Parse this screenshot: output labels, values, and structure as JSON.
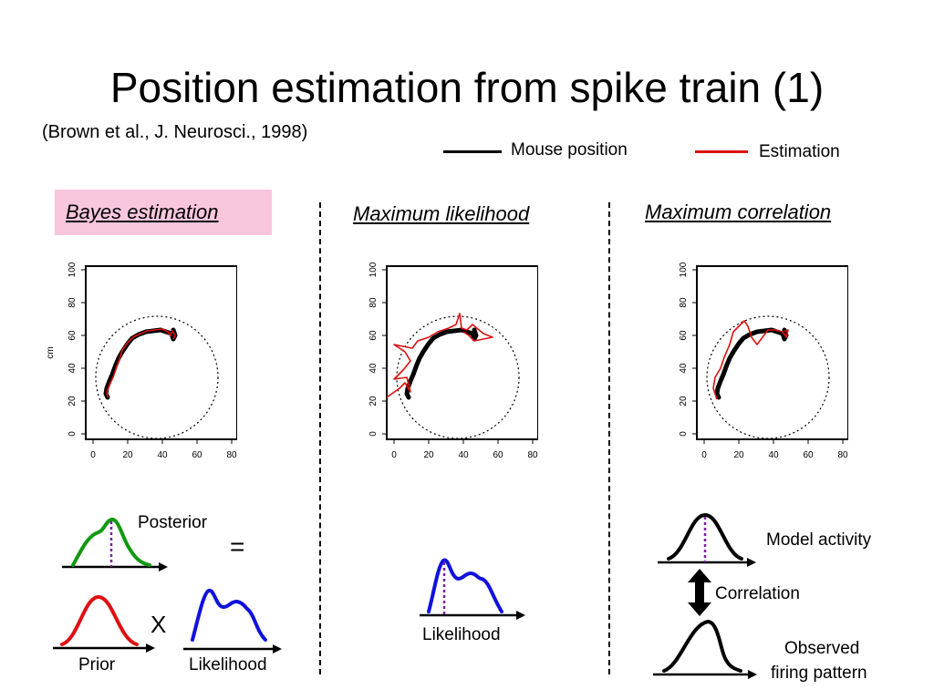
{
  "title": "Position estimation from spike train (1)",
  "citation": "(Brown et al., J. Neurosci., 1998)",
  "legend": {
    "items": [
      {
        "label": "Mouse position",
        "color": "#000000"
      },
      {
        "label": "Estimation",
        "color": "#dd1111"
      }
    ]
  },
  "methods": [
    {
      "label": "Bayes estimation",
      "highlight": "#f9c6de"
    },
    {
      "label": "Maximum likelihood"
    },
    {
      "label": "Maximum correlation"
    }
  ],
  "plot_axes": {
    "x_ticks": [
      "0",
      "20",
      "40",
      "60",
      "80"
    ],
    "y_ticks": [
      "0",
      "20",
      "40",
      "60",
      "80",
      "100"
    ],
    "y_label": "cm"
  },
  "diagram_labels": {
    "posterior": "Posterior",
    "equals": "=",
    "times": "X",
    "prior": "Prior",
    "likelihood_bayes": "Likelihood",
    "likelihood_ml": "Likelihood",
    "model_activity": "Model activity",
    "correlation": "Correlation",
    "observed_line1": "Observed",
    "observed_line2": "firing pattern"
  },
  "colors": {
    "posterior": "#119911",
    "prior": "#dd1111",
    "likelihood": "#1111dd",
    "marker": "#7a1fa2"
  }
}
